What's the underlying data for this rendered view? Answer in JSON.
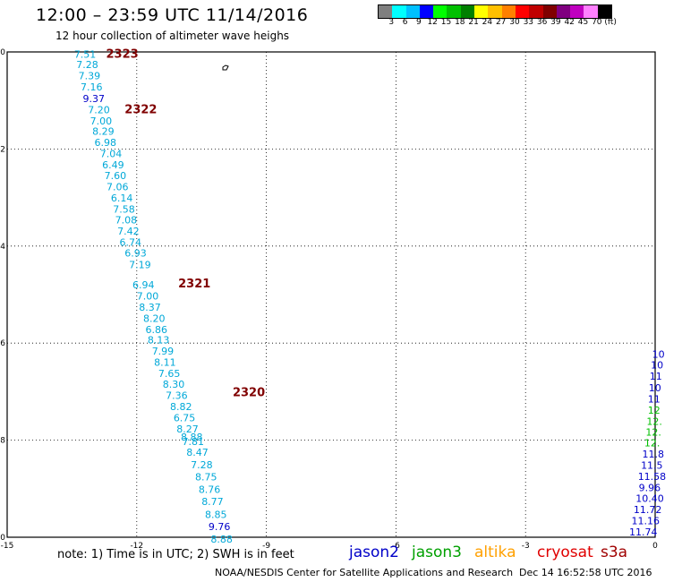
{
  "header": {
    "title": "12:00 – 23:59 UTC 11/14/2016",
    "subtitle": "12 hour collection of altimeter wave heighs"
  },
  "colorbar": {
    "colors": [
      "#7f7f7f",
      "#00ffff",
      "#00c0ff",
      "#0000ff",
      "#00ff00",
      "#00c000",
      "#008000",
      "#ffff00",
      "#ffc000",
      "#ff8000",
      "#ff0000",
      "#c00000",
      "#800000",
      "#800080",
      "#c000c0",
      "#ff80ff",
      "#000000"
    ],
    "labels": [
      "3",
      "6",
      "9",
      "12",
      "15",
      "18",
      "21",
      "24",
      "27",
      "30",
      "33",
      "36",
      "39",
      "42",
      "45",
      "70",
      "(ft)"
    ]
  },
  "map": {
    "x_ticks": [
      "-15",
      "-12",
      "-9",
      "-6",
      "-3",
      "0"
    ],
    "y_ticks": [
      "-40",
      "-42",
      "-44",
      "-46",
      "-48",
      "-50"
    ],
    "colors": {
      "cyan": "#00a8d8",
      "blue": "#0000c8",
      "green": "#00c000",
      "pass": "#800000"
    },
    "passes": [
      {
        "label": "2323",
        "lon": -12.71,
        "lat": -40.12
      },
      {
        "label": "2322",
        "lon": -12.28,
        "lat": -41.26
      },
      {
        "label": "2321",
        "lon": -11.04,
        "lat": -44.85
      },
      {
        "label": "2320",
        "lon": -9.78,
        "lat": -47.09
      }
    ],
    "track_cryosat": [
      {
        "v": "7.51",
        "lon": -13.45,
        "lat": -40.12,
        "c": "cyan"
      },
      {
        "v": "7.28",
        "lon": -13.4,
        "lat": -40.33,
        "c": "cyan"
      },
      {
        "v": "7.39",
        "lon": -13.35,
        "lat": -40.56,
        "c": "cyan"
      },
      {
        "v": "7.16",
        "lon": -13.3,
        "lat": -40.79,
        "c": "cyan"
      },
      {
        "v": "9.37",
        "lon": -13.25,
        "lat": -41.03,
        "c": "blue"
      },
      {
        "v": "7.20",
        "lon": -13.13,
        "lat": -41.26,
        "c": "cyan"
      },
      {
        "v": "7.00",
        "lon": -13.08,
        "lat": -41.49,
        "c": "cyan"
      },
      {
        "v": "8.29",
        "lon": -13.03,
        "lat": -41.71,
        "c": "cyan"
      },
      {
        "v": "6.98",
        "lon": -12.98,
        "lat": -41.94,
        "c": "cyan"
      },
      {
        "v": "7.04",
        "lon": -12.85,
        "lat": -42.17,
        "c": "cyan"
      },
      {
        "v": "6.49",
        "lon": -12.8,
        "lat": -42.4,
        "c": "cyan"
      },
      {
        "v": "7.60",
        "lon": -12.75,
        "lat": -42.62,
        "c": "cyan"
      },
      {
        "v": "7.06",
        "lon": -12.7,
        "lat": -42.85,
        "c": "cyan"
      },
      {
        "v": "6.14",
        "lon": -12.6,
        "lat": -43.08,
        "c": "cyan"
      },
      {
        "v": "7.58",
        "lon": -12.55,
        "lat": -43.31,
        "c": "cyan"
      },
      {
        "v": "7.08",
        "lon": -12.5,
        "lat": -43.53,
        "c": "cyan"
      },
      {
        "v": "7.42",
        "lon": -12.45,
        "lat": -43.76,
        "c": "cyan"
      },
      {
        "v": "6.74",
        "lon": -12.4,
        "lat": -43.99,
        "c": "cyan"
      },
      {
        "v": "6.93",
        "lon": -12.28,
        "lat": -44.22,
        "c": "cyan"
      },
      {
        "v": "7.19",
        "lon": -12.18,
        "lat": -44.46,
        "c": "cyan"
      },
      {
        "v": "6.94",
        "lon": -12.1,
        "lat": -44.87,
        "c": "cyan"
      },
      {
        "v": "7.00",
        "lon": -12.0,
        "lat": -45.1,
        "c": "cyan"
      },
      {
        "v": "8.37",
        "lon": -11.95,
        "lat": -45.33,
        "c": "cyan"
      },
      {
        "v": "8.20",
        "lon": -11.85,
        "lat": -45.56,
        "c": "cyan"
      },
      {
        "v": "6.86",
        "lon": -11.8,
        "lat": -45.79,
        "c": "cyan"
      },
      {
        "v": "8.13",
        "lon": -11.75,
        "lat": -46.01,
        "c": "cyan"
      },
      {
        "v": "7.99",
        "lon": -11.65,
        "lat": -46.24,
        "c": "cyan"
      },
      {
        "v": "8.11",
        "lon": -11.6,
        "lat": -46.47,
        "c": "cyan"
      },
      {
        "v": "7.65",
        "lon": -11.5,
        "lat": -46.7,
        "c": "cyan"
      },
      {
        "v": "8.30",
        "lon": -11.4,
        "lat": -46.92,
        "c": "cyan"
      },
      {
        "v": "7.36",
        "lon": -11.33,
        "lat": -47.15,
        "c": "cyan"
      },
      {
        "v": "8.82",
        "lon": -11.23,
        "lat": -47.38,
        "c": "cyan"
      },
      {
        "v": "6.75",
        "lon": -11.15,
        "lat": -47.61,
        "c": "cyan"
      },
      {
        "v": "8.27",
        "lon": -11.08,
        "lat": -47.84,
        "c": "cyan"
      },
      {
        "v": "8.88",
        "lon": -10.98,
        "lat": -48.01,
        "c": "cyan"
      },
      {
        "v": "7.81",
        "lon": -10.95,
        "lat": -48.1,
        "c": "cyan"
      },
      {
        "v": "8.47",
        "lon": -10.85,
        "lat": -48.32,
        "c": "cyan"
      },
      {
        "v": "7.28",
        "lon": -10.75,
        "lat": -48.58,
        "c": "cyan"
      },
      {
        "v": "8.75",
        "lon": -10.65,
        "lat": -48.83,
        "c": "cyan"
      },
      {
        "v": "8.76",
        "lon": -10.57,
        "lat": -49.09,
        "c": "cyan"
      },
      {
        "v": "8.77",
        "lon": -10.5,
        "lat": -49.34,
        "c": "cyan"
      },
      {
        "v": "8.85",
        "lon": -10.42,
        "lat": -49.6,
        "c": "cyan"
      },
      {
        "v": "9.76",
        "lon": -10.34,
        "lat": -49.85,
        "c": "blue"
      },
      {
        "v": "8.88",
        "lon": -10.29,
        "lat": -50.11,
        "c": "cyan"
      }
    ],
    "track_right": [
      {
        "v": "10",
        "lon": -0.07,
        "lat": -46.3,
        "c": "blue"
      },
      {
        "v": "10",
        "lon": -0.1,
        "lat": -46.52,
        "c": "blue"
      },
      {
        "v": "11",
        "lon": -0.13,
        "lat": -46.75,
        "c": "blue"
      },
      {
        "v": "10",
        "lon": -0.15,
        "lat": -46.99,
        "c": "blue"
      },
      {
        "v": "11",
        "lon": -0.17,
        "lat": -47.22,
        "c": "blue"
      },
      {
        "v": "12",
        "lon": -0.17,
        "lat": -47.45,
        "c": "green"
      },
      {
        "v": "12.",
        "lon": -0.2,
        "lat": -47.68,
        "c": "green"
      },
      {
        "v": "12.",
        "lon": -0.22,
        "lat": -47.91,
        "c": "green"
      },
      {
        "v": "12.",
        "lon": -0.25,
        "lat": -48.13,
        "c": "green"
      },
      {
        "v": "11.8",
        "lon": -0.3,
        "lat": -48.36,
        "c": "blue"
      },
      {
        "v": "11.5",
        "lon": -0.33,
        "lat": -48.59,
        "c": "blue"
      },
      {
        "v": "11.58",
        "lon": -0.4,
        "lat": -48.82,
        "c": "blue"
      },
      {
        "v": "9.96",
        "lon": -0.38,
        "lat": -49.05,
        "c": "blue"
      },
      {
        "v": "10.40",
        "lon": -0.45,
        "lat": -49.27,
        "c": "blue"
      },
      {
        "v": "11.72",
        "lon": -0.5,
        "lat": -49.5,
        "c": "blue"
      },
      {
        "v": "11.16",
        "lon": -0.55,
        "lat": -49.73,
        "c": "blue"
      },
      {
        "v": "11.74",
        "lon": -0.6,
        "lat": -49.96,
        "c": "blue"
      }
    ]
  },
  "footer": {
    "note": "note:  1) Time is in UTC;  2) SWH is in feet",
    "legend": [
      {
        "name": "jason2",
        "color": "#0000c8"
      },
      {
        "name": "jason3",
        "color": "#00a000"
      },
      {
        "name": "altika",
        "color": "#ffa000"
      },
      {
        "name": "cryosat",
        "color": "#e00000"
      },
      {
        "name": "s3a",
        "color": "#a00000"
      }
    ],
    "credit": "NOAA/NESDIS Center for Satellite Applications and Research",
    "timestamp": "Dec 14 16:52:58 UTC 2016"
  }
}
